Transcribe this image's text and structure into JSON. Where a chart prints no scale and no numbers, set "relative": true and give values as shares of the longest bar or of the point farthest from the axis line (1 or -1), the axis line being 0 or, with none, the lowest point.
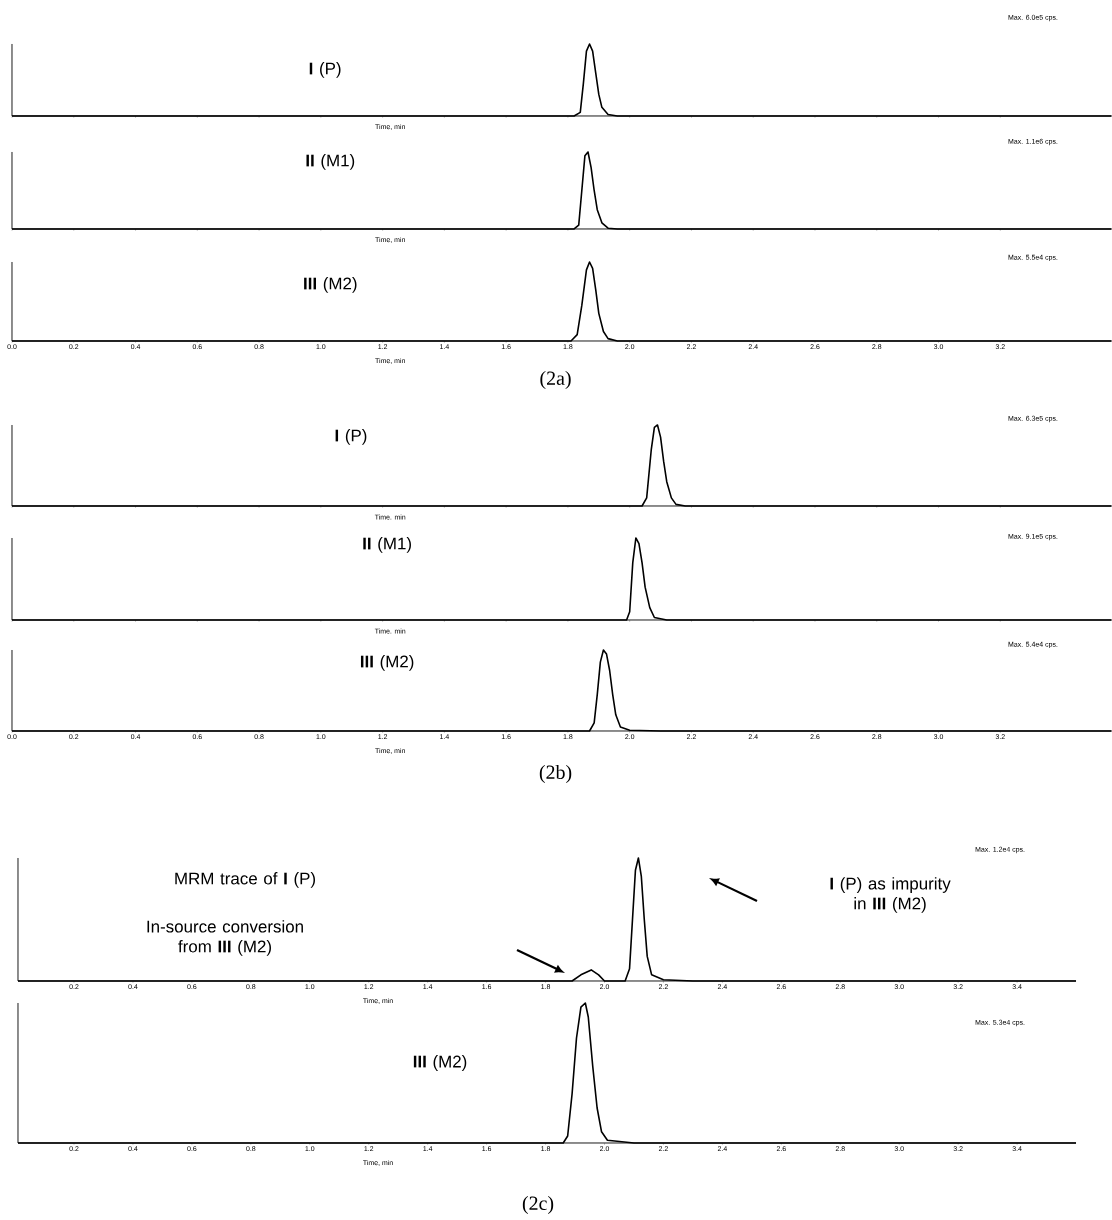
{
  "chart_data": [
    {
      "type": "line",
      "relative": true,
      "color": "#000000",
      "subtitle": "Max. 6.0e5 cps.",
      "xlabel": "Time, min",
      "tick_labels": false,
      "xlim": [
        0,
        3.56
      ],
      "xticks": [
        0,
        0.2,
        0.4,
        0.6,
        0.8,
        1,
        1.2,
        1.4,
        1.6,
        1.8,
        2,
        2.2,
        2.4,
        2.6,
        2.8,
        3,
        3.2
      ],
      "x": [
        0,
        1.82,
        1.84,
        1.85,
        1.86,
        1.87,
        1.88,
        1.89,
        1.9,
        1.91,
        1.93,
        1.96,
        3.56
      ],
      "values": [
        0,
        0,
        0.05,
        0.45,
        0.9,
        1,
        0.9,
        0.6,
        0.3,
        0.12,
        0.02,
        0,
        0
      ],
      "annotations": [
        "**I** (P)"
      ]
    },
    {
      "type": "line",
      "relative": true,
      "color": "#000000",
      "subtitle": "Max. 1.1e6 cps.",
      "xlabel": "Time, min",
      "tick_labels": false,
      "xlim": [
        0,
        3.56
      ],
      "xticks": [
        0,
        0.2,
        0.4,
        0.6,
        0.8,
        1,
        1.2,
        1.4,
        1.6,
        1.8,
        2,
        2.2,
        2.4,
        2.6,
        2.8,
        3,
        3.2
      ],
      "x": [
        0,
        1.82,
        1.835,
        1.845,
        1.855,
        1.865,
        1.875,
        1.885,
        1.895,
        1.91,
        1.93,
        1.96,
        3.56
      ],
      "values": [
        0,
        0,
        0.05,
        0.5,
        0.95,
        1,
        0.8,
        0.5,
        0.25,
        0.08,
        0.01,
        0,
        0
      ],
      "annotations": [
        "**II** (M1)"
      ]
    },
    {
      "type": "line",
      "relative": true,
      "color": "#000000",
      "subtitle": "Max. 5.5e4 cps.",
      "xlabel": "Time, min",
      "xlim": [
        0,
        3.56
      ],
      "xticks": [
        {
          "value": 0,
          "label": "0.0"
        },
        0.2,
        0.4,
        0.6,
        0.8,
        {
          "value": 1,
          "label": "1.0"
        },
        1.2,
        1.4,
        1.6,
        1.8,
        {
          "value": 2,
          "label": "2.0"
        },
        2.2,
        2.4,
        2.6,
        2.8,
        {
          "value": 3,
          "label": "3.0"
        },
        3.2
      ],
      "x": [
        0,
        1.81,
        1.83,
        1.845,
        1.86,
        1.87,
        1.88,
        1.89,
        1.9,
        1.915,
        1.93,
        1.96,
        3.56
      ],
      "values": [
        0,
        0,
        0.08,
        0.45,
        0.9,
        1,
        0.92,
        0.65,
        0.35,
        0.12,
        0.03,
        0,
        0
      ],
      "annotations": [
        "**III** (M2)",
        "(2a)"
      ]
    },
    {
      "type": "line",
      "relative": true,
      "color": "#000000",
      "subtitle": "Max. 6.3e5 cps.",
      "xlabel": "Time. min",
      "tick_labels": false,
      "xlim": [
        0,
        3.56
      ],
      "xticks": [
        0,
        0.2,
        0.4,
        0.6,
        0.8,
        1,
        1.2,
        1.4,
        1.6,
        1.8,
        2,
        2.2,
        2.4,
        2.6,
        2.8,
        3,
        3.2
      ],
      "x": [
        0,
        2.04,
        2.055,
        2.07,
        2.08,
        2.09,
        2.1,
        2.11,
        2.12,
        2.135,
        2.15,
        2.18,
        3.56
      ],
      "values": [
        0,
        0,
        0.1,
        0.7,
        0.97,
        1,
        0.85,
        0.55,
        0.3,
        0.1,
        0.02,
        0,
        0
      ],
      "annotations": [
        "**I** (P)"
      ]
    },
    {
      "type": "line",
      "relative": true,
      "color": "#000000",
      "subtitle": "Max. 9.1e5 cps.",
      "xlabel": "Time. min",
      "tick_labels": false,
      "xlim": [
        0,
        3.56
      ],
      "xticks": [
        0,
        0.2,
        0.4,
        0.6,
        0.8,
        1,
        1.2,
        1.4,
        1.6,
        1.8,
        2,
        2.2,
        2.4,
        2.6,
        2.8,
        3,
        3.2
      ],
      "x": [
        0,
        1.99,
        2.0,
        2.01,
        2.02,
        2.03,
        2.04,
        2.05,
        2.065,
        2.08,
        2.12,
        3.56
      ],
      "values": [
        0,
        0,
        0.1,
        0.7,
        1,
        0.93,
        0.7,
        0.4,
        0.15,
        0.03,
        0,
        0
      ],
      "annotations": [
        "**II** (M1)"
      ]
    },
    {
      "type": "line",
      "relative": true,
      "color": "#000000",
      "subtitle": "Max. 5.4e4 cps.",
      "xlabel": "Time, min",
      "xlim": [
        0,
        3.56
      ],
      "xticks": [
        {
          "value": 0,
          "label": "0.0"
        },
        0.2,
        0.4,
        0.6,
        0.8,
        {
          "value": 1,
          "label": "1.0"
        },
        1.2,
        1.4,
        1.6,
        1.8,
        {
          "value": 2,
          "label": "2.0"
        },
        2.2,
        2.4,
        2.6,
        2.8,
        {
          "value": 3,
          "label": "3.0"
        },
        3.2
      ],
      "x": [
        0,
        1.87,
        1.885,
        1.895,
        1.905,
        1.915,
        1.925,
        1.935,
        1.945,
        1.955,
        1.97,
        2.0,
        2.1,
        3.56
      ],
      "values": [
        0,
        0,
        0.1,
        0.45,
        0.85,
        1,
        0.95,
        0.75,
        0.45,
        0.2,
        0.05,
        0.01,
        0,
        0
      ],
      "annotations": [
        "**III** (M2)",
        "(2b)"
      ]
    },
    {
      "type": "line",
      "relative": true,
      "color": "#000000",
      "subtitle": "Max. 1.2e4 cps.",
      "xlabel": "Time, min",
      "xlim": [
        0.01,
        3.6
      ],
      "xticks": [
        0.2,
        0.4,
        0.6,
        0.8,
        {
          "value": 1,
          "label": "1.0"
        },
        1.2,
        1.4,
        1.6,
        1.8,
        {
          "value": 2,
          "label": "2.0"
        },
        2.2,
        2.4,
        2.6,
        2.8,
        {
          "value": 3,
          "label": "3.0"
        },
        3.2,
        3.4
      ],
      "x": [
        0.01,
        1.89,
        1.92,
        1.955,
        1.98,
        2.0,
        2.07,
        2.085,
        2.095,
        2.105,
        2.115,
        2.125,
        2.135,
        2.145,
        2.16,
        2.2,
        2.3,
        3.6
      ],
      "values": [
        0,
        0,
        0.05,
        0.09,
        0.05,
        0,
        0,
        0.1,
        0.5,
        0.9,
        1,
        0.85,
        0.5,
        0.2,
        0.05,
        0.01,
        0,
        0
      ],
      "annotations": [
        "MRM trace of **I** (P)",
        "In-source conversion from **III** (M2)",
        "**I** (P) as impurity in **III** (M2)"
      ]
    },
    {
      "type": "line",
      "relative": true,
      "color": "#000000",
      "subtitle": "Max. 5.3e4 cps.",
      "xlabel": "Time, min",
      "xlim": [
        0.01,
        3.6
      ],
      "xticks": [
        0.2,
        0.4,
        0.6,
        0.8,
        {
          "value": 1,
          "label": "1.0"
        },
        1.2,
        1.4,
        1.6,
        1.8,
        {
          "value": 2,
          "label": "2.0"
        },
        2.2,
        2.4,
        2.6,
        2.8,
        {
          "value": 3,
          "label": "3.0"
        },
        3.2,
        3.4
      ],
      "x": [
        0.01,
        1.86,
        1.875,
        1.89,
        1.905,
        1.92,
        1.935,
        1.945,
        1.96,
        1.975,
        1.99,
        2.01,
        2.1,
        3.6
      ],
      "values": [
        0,
        0,
        0.05,
        0.35,
        0.75,
        0.97,
        1,
        0.9,
        0.55,
        0.25,
        0.08,
        0.02,
        0,
        0
      ],
      "annotations": [
        "**III** (M2)",
        "(2c)"
      ]
    }
  ]
}
